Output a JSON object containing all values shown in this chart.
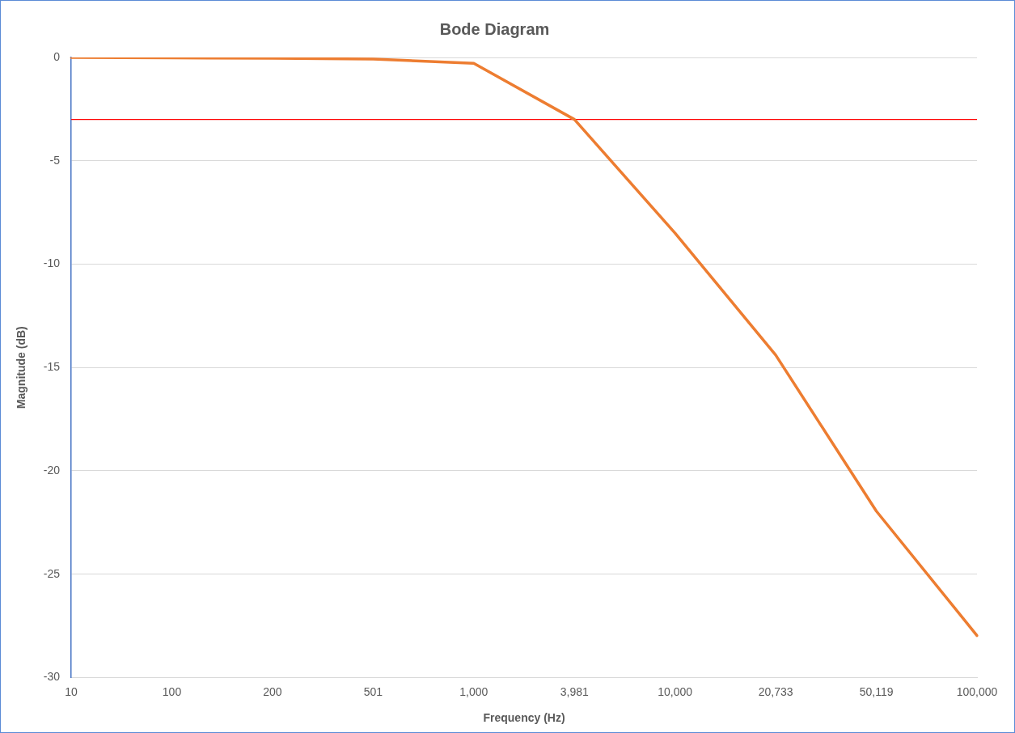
{
  "chart_data": {
    "type": "line",
    "title": "Bode Diagram",
    "xlabel": "Frequency (Hz)",
    "ylabel": "Magnitude (dB)",
    "categories": [
      "10",
      "100",
      "200",
      "501",
      "1,000",
      "3,981",
      "10,000",
      "20,733",
      "50,119",
      "100,000"
    ],
    "series": [
      {
        "color": "#ed7d31",
        "values": [
          0,
          -0.02,
          -0.04,
          -0.08,
          -0.28,
          -3,
          -8.5,
          -14.4,
          -21.95,
          -27.97
        ]
      }
    ],
    "ref_lines": [
      {
        "axis": "y",
        "value": -3,
        "color": "#ff0000"
      }
    ],
    "ylim": [
      -30,
      0
    ],
    "yticks": [
      -30,
      -25,
      -20,
      -15,
      -10,
      -5,
      0
    ],
    "grid": "y",
    "legend": false,
    "marker": "none",
    "line_style": "solid"
  }
}
